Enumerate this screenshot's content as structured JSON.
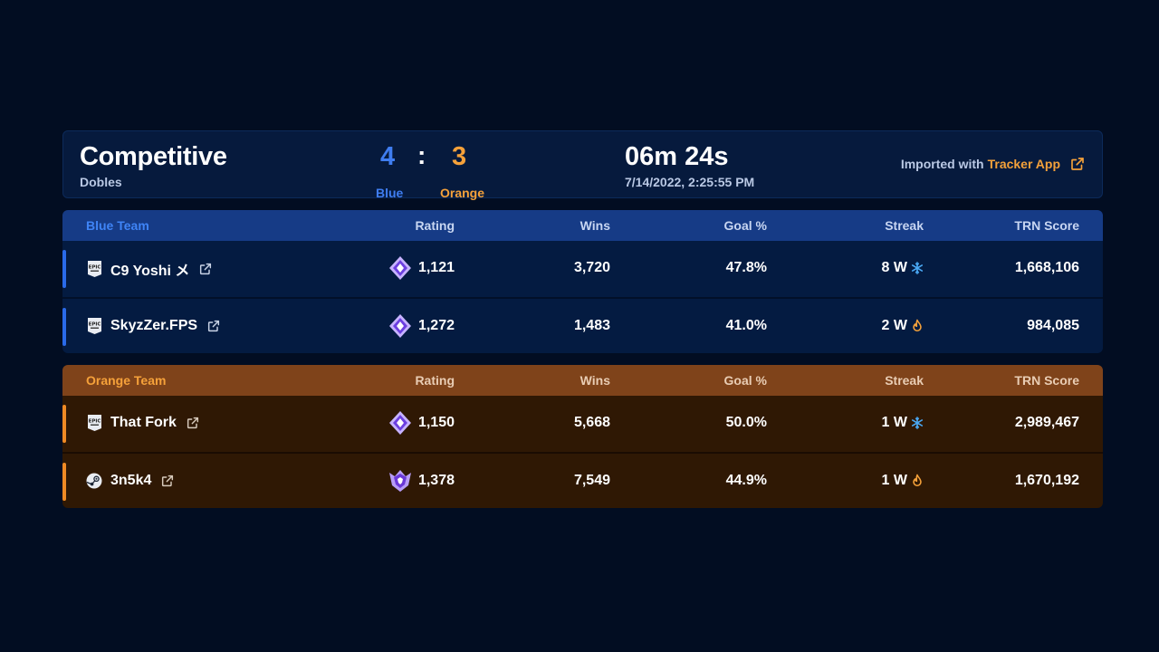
{
  "header": {
    "mode_title": "Competitive",
    "mode_sub": "Dobles",
    "score": {
      "blue": "4",
      "separator": ":",
      "orange": "3",
      "blue_label": "Blue",
      "orange_label": "Orange"
    },
    "duration": "06m 24s",
    "date": "7/14/2022, 2:25:55 PM",
    "imported_prefix": "Imported with",
    "imported_link": "Tracker App"
  },
  "columns": {
    "rating": "Rating",
    "wins": "Wins",
    "goal": "Goal %",
    "streak": "Streak",
    "trn": "TRN Score"
  },
  "teams": {
    "blue": {
      "name": "Blue Team",
      "players": [
        {
          "name": "C9 Yoshi メ",
          "platform": "epic-icon",
          "rank_icon": "diamond-rank-icon",
          "rating": "1,121",
          "wins": "3,720",
          "goal": "47.8%",
          "streak": "8 W",
          "streak_icon": "snowflake-icon",
          "trn": "1,668,106"
        },
        {
          "name": "SkyzZer.FPS",
          "platform": "epic-icon",
          "rank_icon": "diamond-rank-icon",
          "rating": "1,272",
          "wins": "1,483",
          "goal": "41.0%",
          "streak": "2 W",
          "streak_icon": "flame-icon",
          "trn": "984,085"
        }
      ]
    },
    "orange": {
      "name": "Orange Team",
      "players": [
        {
          "name": "That Fork",
          "platform": "epic-icon",
          "rank_icon": "diamond-rank-icon",
          "rating": "1,150",
          "wins": "5,668",
          "goal": "50.0%",
          "streak": "1 W",
          "streak_icon": "snowflake-icon",
          "trn": "2,989,467"
        },
        {
          "name": "3n5k4",
          "platform": "steam-icon",
          "rank_icon": "champion-rank-icon",
          "rating": "1,378",
          "wins": "7,549",
          "goal": "44.9%",
          "streak": "1 W",
          "streak_icon": "flame-icon",
          "trn": "1,670,192"
        }
      ]
    }
  },
  "colors": {
    "background": "#020d22",
    "blue": "#3f7df0",
    "orange": "#f5a13a",
    "blue_header": "#163b86",
    "orange_header": "#7f431a"
  }
}
